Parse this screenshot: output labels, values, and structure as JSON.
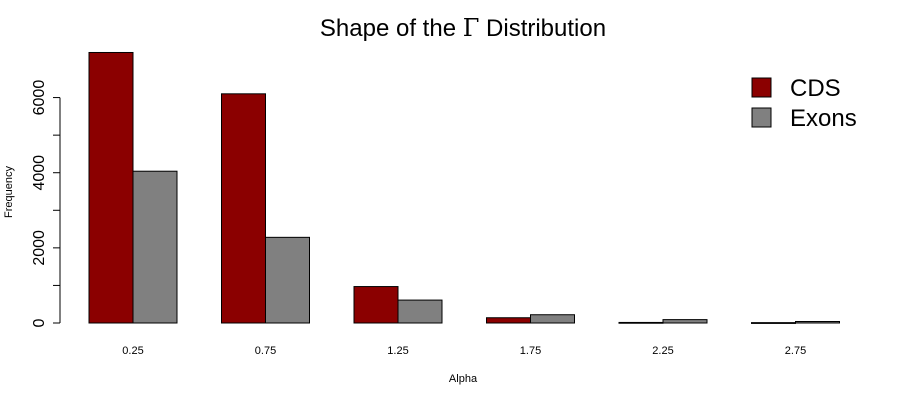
{
  "chart_data": {
    "type": "bar",
    "title_prefix": "Shape of the ",
    "title_symbol": "Γ",
    "title_suffix": " Distribution",
    "xlabel": "Alpha",
    "ylabel": "Frequency",
    "categories": [
      "0.25",
      "0.75",
      "1.25",
      "1.75",
      "2.25",
      "2.75"
    ],
    "series": [
      {
        "name": "CDS",
        "color": "#8B0000",
        "values": [
          7200,
          6100,
          970,
          140,
          15,
          10
        ]
      },
      {
        "name": "Exons",
        "color": "#808080",
        "values": [
          4040,
          2280,
          610,
          220,
          90,
          40
        ]
      }
    ],
    "ylim": [
      0,
      7000
    ],
    "yticks": [
      0,
      2000,
      4000,
      6000
    ],
    "grid": false,
    "legend_position": "top-right"
  }
}
